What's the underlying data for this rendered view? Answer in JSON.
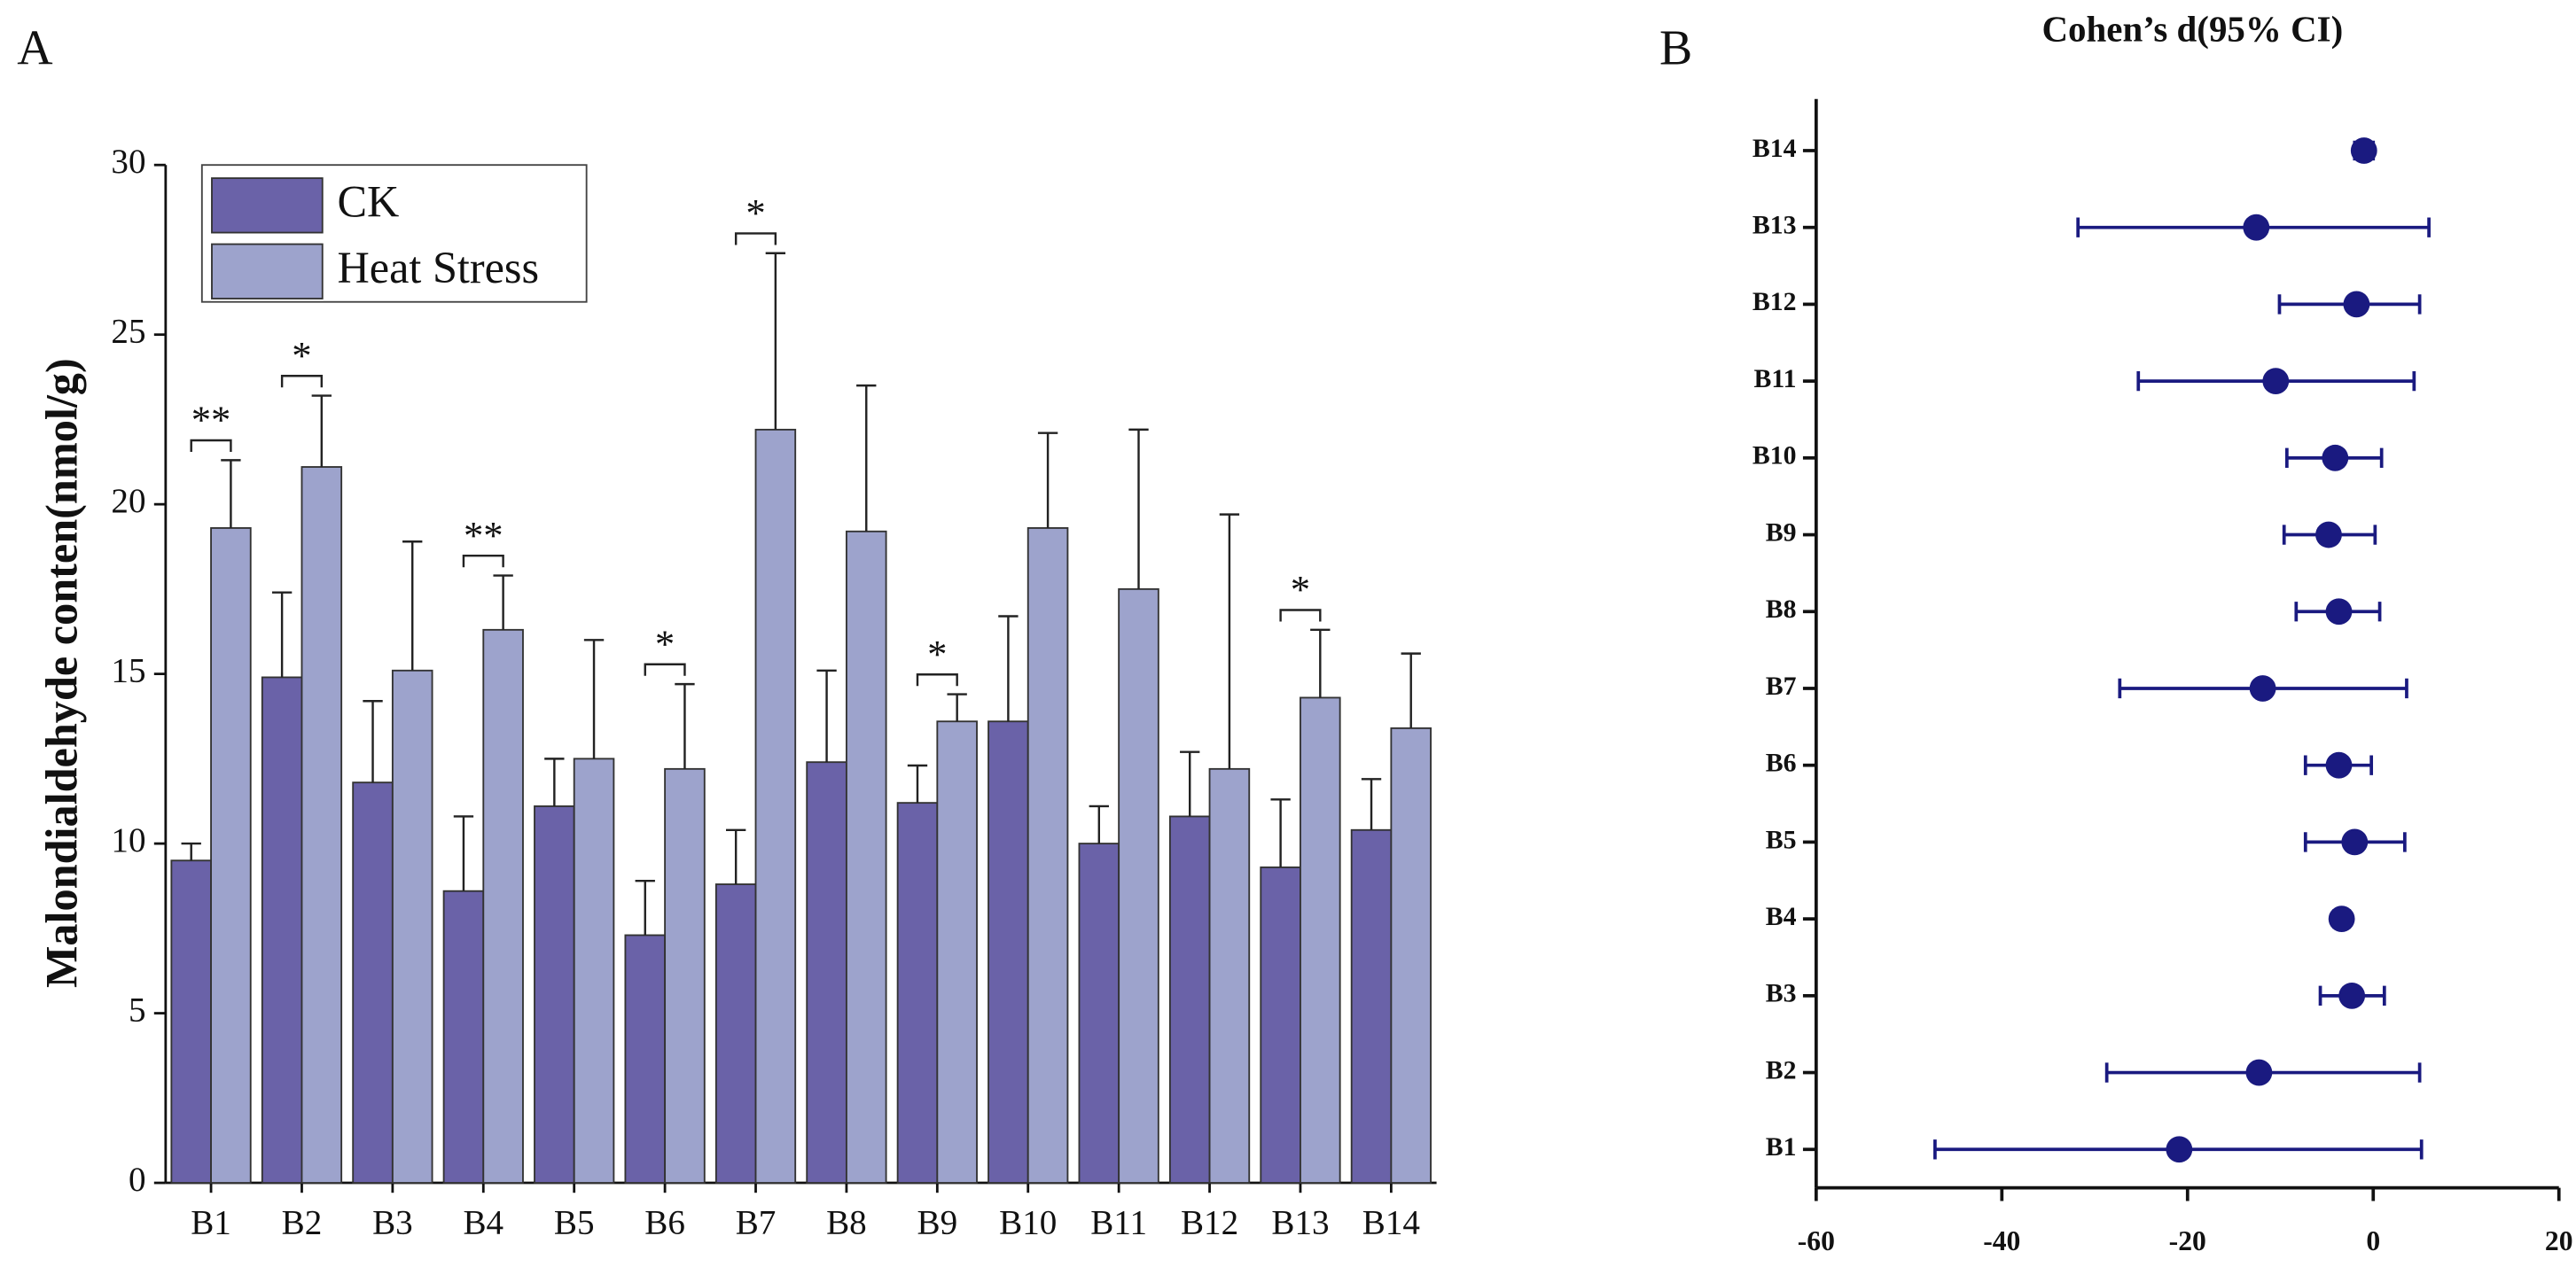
{
  "chart_data": [
    {
      "type": "bar",
      "panel_label": "A",
      "ylabel": "Malondialdehyde conten(nmol/g)",
      "categories": [
        "B1",
        "B2",
        "B3",
        "B4",
        "B5",
        "B6",
        "B7",
        "B8",
        "B9",
        "B10",
        "B11",
        "B12",
        "B13",
        "B14"
      ],
      "series": [
        {
          "name": "CK",
          "color": "#6a62a8",
          "values": [
            9.5,
            14.9,
            11.8,
            8.6,
            11.1,
            7.3,
            8.8,
            12.4,
            11.2,
            13.6,
            10.0,
            10.8,
            9.3,
            10.4
          ],
          "errors": [
            0.5,
            2.5,
            2.4,
            2.2,
            1.4,
            1.6,
            1.6,
            2.7,
            1.1,
            3.1,
            1.1,
            1.9,
            2.0,
            1.5
          ]
        },
        {
          "name": "Heat Stress",
          "color": "#9da3cc",
          "values": [
            19.3,
            21.1,
            15.1,
            16.3,
            12.5,
            12.2,
            22.2,
            19.2,
            13.6,
            19.3,
            17.5,
            12.2,
            14.3,
            13.4
          ],
          "errors": [
            2.0,
            2.1,
            3.8,
            1.6,
            3.5,
            2.5,
            5.2,
            4.3,
            0.8,
            2.8,
            4.7,
            7.5,
            2.0,
            2.2
          ]
        }
      ],
      "annotations": [
        {
          "category": "B1",
          "text": "**"
        },
        {
          "category": "B2",
          "text": "*"
        },
        {
          "category": "B4",
          "text": "**"
        },
        {
          "category": "B6",
          "text": "*"
        },
        {
          "category": "B7",
          "text": "*"
        },
        {
          "category": "B9",
          "text": "*"
        },
        {
          "category": "B13",
          "text": "*"
        }
      ],
      "ylim": [
        0,
        30
      ],
      "yticks": [
        0,
        5,
        10,
        15,
        20,
        25,
        30
      ],
      "grid": false,
      "legend": "upper left"
    },
    {
      "type": "forest",
      "panel_label": "B",
      "title": "Cohen’s d(95% CI)",
      "categories": [
        "B1",
        "B2",
        "B3",
        "B4",
        "B5",
        "B6",
        "B7",
        "B8",
        "B9",
        "B10",
        "B11",
        "B12",
        "B13",
        "B14"
      ],
      "color": "#1a1a80",
      "values": [
        -20.9,
        -12.3,
        -2.3,
        -3.4,
        -2.0,
        -3.7,
        -11.9,
        -3.7,
        -4.8,
        -4.1,
        -10.5,
        -1.8,
        -12.6,
        -1.0
      ],
      "lower": [
        -47.2,
        -28.7,
        -5.7,
        -4.2,
        -7.3,
        -7.3,
        -27.3,
        -8.3,
        -9.6,
        -9.3,
        -25.3,
        -10.1,
        -31.8,
        -2.0
      ],
      "upper": [
        5.2,
        5.0,
        1.2,
        -2.6,
        3.4,
        -0.2,
        3.6,
        0.7,
        0.2,
        0.9,
        4.4,
        5.0,
        6.0,
        0.0
      ],
      "xlim": [
        -60,
        20
      ],
      "xticks": [
        -60,
        -40,
        -20,
        0,
        20
      ],
      "grid": false
    }
  ]
}
